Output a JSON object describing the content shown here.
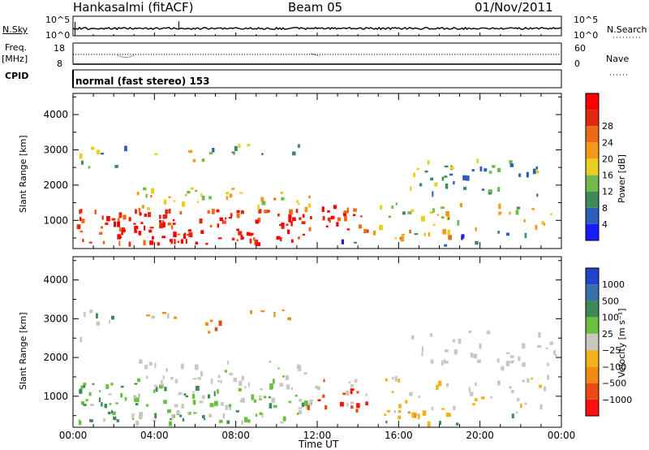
{
  "header": {
    "station": "Hankasalmi (fitACF)",
    "beam": "Beam 05",
    "date": "01/Nov/2011"
  },
  "strip": {
    "nsky_label": "N.Sky",
    "nsky_ticks": [
      "10^5",
      "10^0"
    ],
    "nsearch_label": "N.Search",
    "nsearch_ticks": [
      "10^5",
      "10^0"
    ],
    "freq_label": "Freq.",
    "freq_unit": "[MHz]",
    "freq_ticks": [
      "18",
      "8"
    ],
    "nave_label": "Nave",
    "nave_ticks": [
      "60",
      "0"
    ],
    "cpid_label": "CPID",
    "cpid_value": "normal (fast stereo) 153"
  },
  "colors": {
    "power_scale": [
      "#1a1aff",
      "#2b5fb8",
      "#3e8a5a",
      "#72b84a",
      "#e8d020",
      "#f39a1a",
      "#ee6a14",
      "#e02a10",
      "#ff0000"
    ],
    "velocity_scale": [
      "#2244cc",
      "#3a70a8",
      "#3d8a55",
      "#6ac040",
      "#c8c8c0",
      "#f2b21a",
      "#f08a10",
      "#e84a10",
      "#ff1010"
    ]
  },
  "chart_data": [
    {
      "type": "heatmap",
      "name": "power_panel",
      "ylabel": "Slant Range [km]",
      "yticks": [
        1000,
        2000,
        3000,
        4000
      ],
      "ylim": [
        200,
        4600
      ],
      "xticks": [
        "00:00",
        "04:00",
        "08:00",
        "12:00",
        "16:00",
        "20:00",
        "00:00"
      ],
      "xlim_hours": [
        0,
        24
      ],
      "colorbar": {
        "label": "Power [dB]",
        "ticks": [
          "4",
          "8",
          "12",
          "16",
          "20",
          "24",
          "28"
        ]
      }
    },
    {
      "type": "heatmap",
      "name": "velocity_panel",
      "ylabel": "Slant Range [km]",
      "yticks": [
        1000,
        2000,
        3000,
        4000
      ],
      "ylim": [
        200,
        4600
      ],
      "xticks": [
        "00:00",
        "04:00",
        "08:00",
        "12:00",
        "16:00",
        "20:00",
        "00:00"
      ],
      "xlim_hours": [
        0,
        24
      ],
      "xlabel": "Time UT",
      "colorbar": {
        "label": "Velocity [m s⁻¹]",
        "ticks": [
          "1000",
          "500",
          "100",
          "25",
          "−25",
          "−100",
          "−500",
          "−1000"
        ]
      }
    }
  ]
}
